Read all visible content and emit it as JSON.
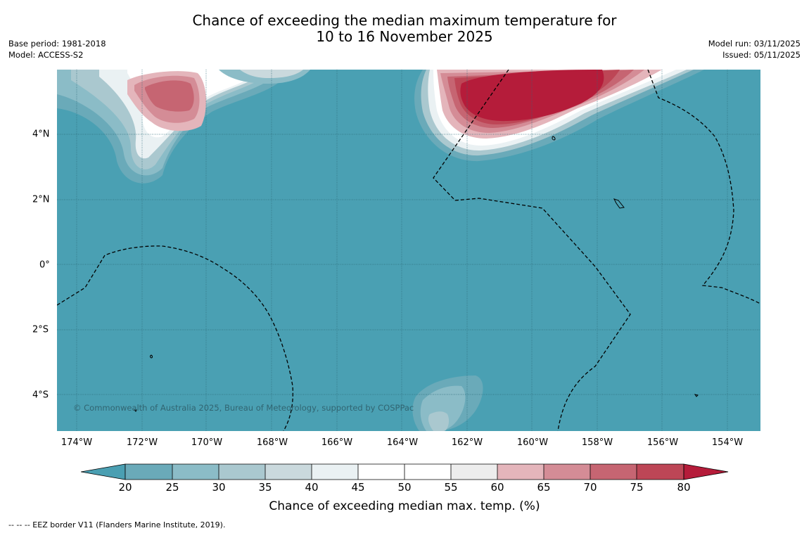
{
  "title_line1": "Chance of exceeding the median maximum temperature for",
  "title_line2": "10 to 16 November 2025",
  "meta_left": {
    "base_period": "Base period: 1981-2018",
    "model": "Model: ACCESS-S2"
  },
  "meta_right": {
    "model_run": "Model run: 03/11/2025",
    "issued": "Issued: 05/11/2025"
  },
  "map": {
    "x_ticks": [
      "174°W",
      "172°W",
      "170°W",
      "168°W",
      "166°W",
      "164°W",
      "162°W",
      "160°W",
      "158°W",
      "156°W",
      "154°W"
    ],
    "y_ticks": [
      "4°N",
      "2°N",
      "0°",
      "2°S",
      "4°S"
    ],
    "copyright": "© Commonwealth of Australia 2025, Bureau of Meteorology, supported by COSPPac",
    "colors": {
      "ocean_base": "#4aa0b3",
      "gridline": "#2d6a78",
      "eez": "#000000"
    }
  },
  "colorbar": {
    "labels": [
      "20",
      "25",
      "30",
      "35",
      "40",
      "45",
      "50",
      "55",
      "60",
      "65",
      "70",
      "75",
      "80"
    ],
    "colors": [
      "#4a9fb2",
      "#6aaab9",
      "#8bbcc7",
      "#aac8cf",
      "#cad9dd",
      "#eaf1f3",
      "#ffffff",
      "#ffffff",
      "#ededed",
      "#e4b5bb",
      "#d48c96",
      "#c66572",
      "#bd4656",
      "#b51c3a"
    ],
    "title": "Chance of exceeding median max. temp. (%)"
  },
  "footer": "--  --  -- EEZ border V11 (Flanders Marine Institute, 2019)."
}
